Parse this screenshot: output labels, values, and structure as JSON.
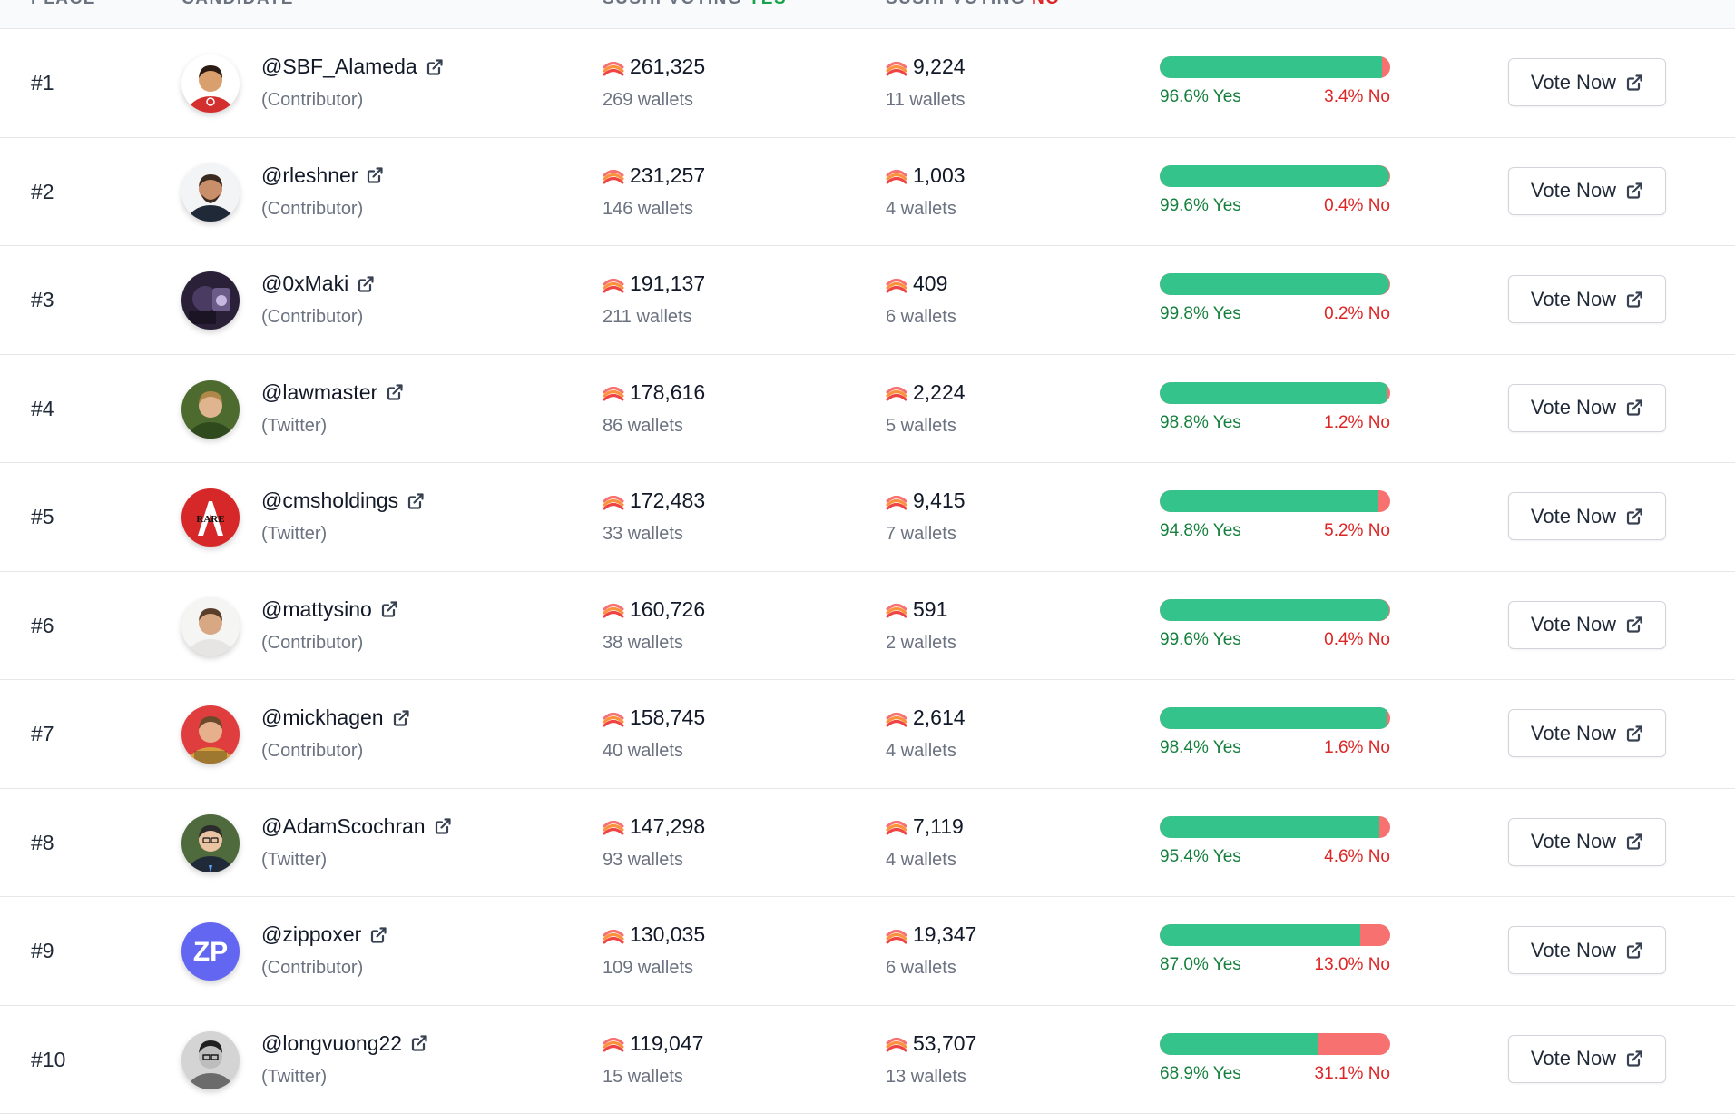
{
  "header": {
    "place": "PLACE",
    "candidate": "CANDIDATE",
    "sushi_yes_prefix": "SUSHI VOTING",
    "sushi_yes_word": "YES",
    "sushi_no_prefix": "SUSHI VOTING",
    "sushi_no_word": "NO"
  },
  "colors": {
    "yes": "#34c48b",
    "no": "#f87171",
    "yes_text": "#15803d",
    "no_text": "#dc2626"
  },
  "icons": {
    "external_link": "external-link-icon",
    "sushi": "sushi-icon"
  },
  "rows": [
    {
      "place": "#1",
      "handle": "@SBF_Alameda",
      "role": "(Contributor)",
      "yes_votes": "261,325",
      "yes_wallets": "269 wallets",
      "no_votes": "9,224",
      "no_wallets": "11 wallets",
      "yes_pct": 96.6,
      "yes_label": "96.6% Yes",
      "no_label": "3.4% No",
      "button": "Vote Now",
      "avatar": "sbf"
    },
    {
      "place": "#2",
      "handle": "@rleshner",
      "role": "(Contributor)",
      "yes_votes": "231,257",
      "yes_wallets": "146 wallets",
      "no_votes": "1,003",
      "no_wallets": "4 wallets",
      "yes_pct": 99.6,
      "yes_label": "99.6% Yes",
      "no_label": "0.4% No",
      "button": "Vote Now",
      "avatar": "rleshner"
    },
    {
      "place": "#3",
      "handle": "@0xMaki",
      "role": "(Contributor)",
      "yes_votes": "191,137",
      "yes_wallets": "211 wallets",
      "no_votes": "409",
      "no_wallets": "6 wallets",
      "yes_pct": 99.8,
      "yes_label": "99.8% Yes",
      "no_label": "0.2% No",
      "button": "Vote Now",
      "avatar": "maki"
    },
    {
      "place": "#4",
      "handle": "@lawmaster",
      "role": "(Twitter)",
      "yes_votes": "178,616",
      "yes_wallets": "86 wallets",
      "no_votes": "2,224",
      "no_wallets": "5 wallets",
      "yes_pct": 98.8,
      "yes_label": "98.8% Yes",
      "no_label": "1.2% No",
      "button": "Vote Now",
      "avatar": "lawmaster"
    },
    {
      "place": "#5",
      "handle": "@cmsholdings",
      "role": "(Twitter)",
      "yes_votes": "172,483",
      "yes_wallets": "33 wallets",
      "no_votes": "9,415",
      "no_wallets": "7 wallets",
      "yes_pct": 94.8,
      "yes_label": "94.8% Yes",
      "no_label": "5.2% No",
      "button": "Vote Now",
      "avatar": "cms",
      "avatar_text": "RARE"
    },
    {
      "place": "#6",
      "handle": "@mattysino",
      "role": "(Contributor)",
      "yes_votes": "160,726",
      "yes_wallets": "38 wallets",
      "no_votes": "591",
      "no_wallets": "2 wallets",
      "yes_pct": 99.6,
      "yes_label": "99.6% Yes",
      "no_label": "0.4% No",
      "button": "Vote Now",
      "avatar": "mattysino"
    },
    {
      "place": "#7",
      "handle": "@mickhagen",
      "role": "(Contributor)",
      "yes_votes": "158,745",
      "yes_wallets": "40 wallets",
      "no_votes": "2,614",
      "no_wallets": "4 wallets",
      "yes_pct": 98.4,
      "yes_label": "98.4% Yes",
      "no_label": "1.6% No",
      "button": "Vote Now",
      "avatar": "mickhagen"
    },
    {
      "place": "#8",
      "handle": "@AdamScochran",
      "role": "(Twitter)",
      "yes_votes": "147,298",
      "yes_wallets": "93 wallets",
      "no_votes": "7,119",
      "no_wallets": "4 wallets",
      "yes_pct": 95.4,
      "yes_label": "95.4% Yes",
      "no_label": "4.6% No",
      "button": "Vote Now",
      "avatar": "adam"
    },
    {
      "place": "#9",
      "handle": "@zippoxer",
      "role": "(Contributor)",
      "yes_votes": "130,035",
      "yes_wallets": "109 wallets",
      "no_votes": "19,347",
      "no_wallets": "6 wallets",
      "yes_pct": 87.0,
      "yes_label": "87.0% Yes",
      "no_label": "13.0% No",
      "button": "Vote Now",
      "avatar": "zp",
      "avatar_text": "ZP"
    },
    {
      "place": "#10",
      "handle": "@longvuong22",
      "role": "(Twitter)",
      "yes_votes": "119,047",
      "yes_wallets": "15 wallets",
      "no_votes": "53,707",
      "no_wallets": "13 wallets",
      "yes_pct": 68.9,
      "yes_label": "68.9% Yes",
      "no_label": "31.1% No",
      "button": "Vote Now",
      "avatar": "longvuong"
    }
  ]
}
